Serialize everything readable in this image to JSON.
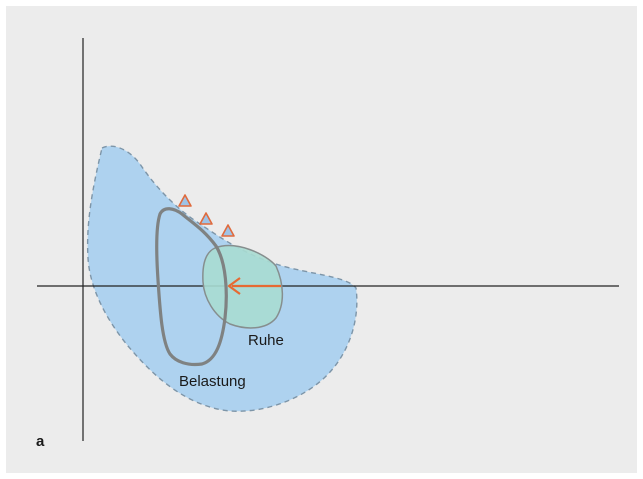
{
  "figure": {
    "panel_label": "a",
    "labels": {
      "rest": "Ruhe",
      "exercise": "Belastung"
    },
    "colors": {
      "background": "#ECECEC",
      "outer_region_fill": "#AED2EF",
      "outer_region_stroke": "#7D95A8",
      "rest_loop_fill": "#A8DCD2",
      "rest_loop_stroke": "#868E8E",
      "exercise_loop_stroke": "#7F8282",
      "arrow": "#E66A33",
      "marker_fill": "#9FC3E6",
      "marker_stroke": "#E06A3C",
      "axis": "#222222",
      "text": "#1A1A1A"
    },
    "markers": {
      "shape": "triangle",
      "count": 3
    },
    "arrow_direction": "left"
  }
}
